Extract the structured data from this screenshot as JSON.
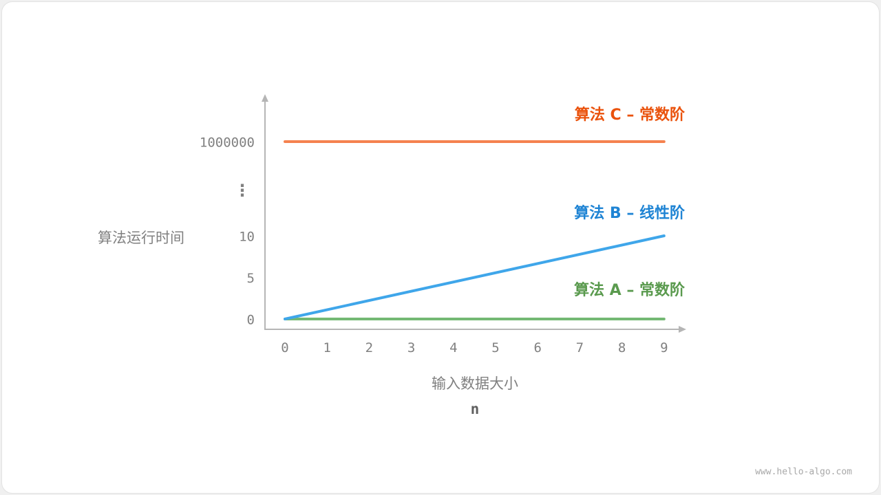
{
  "chart_data": {
    "type": "line",
    "xlabel": "输入数据大小",
    "xlabel_sub": "n",
    "ylabel": "算法运行时间",
    "x_ticks": [
      0,
      1,
      2,
      3,
      4,
      5,
      6,
      7,
      8,
      9
    ],
    "y_ticks": [
      "0",
      "5",
      "10",
      "1000000"
    ],
    "y_ellipsis": "⋮",
    "y_axis_broken": true,
    "xlim": [
      0,
      9
    ],
    "grid": false,
    "series": [
      {
        "name": "算法 A – 常数阶",
        "x": [
          0,
          9
        ],
        "y": [
          0,
          0
        ],
        "color": "#74b874",
        "label_color": "#5a9a4e"
      },
      {
        "name": "算法 B – 线性阶",
        "x": [
          0,
          9
        ],
        "y": [
          0,
          10
        ],
        "color": "#3fa6ea",
        "label_color": "#1f84d4"
      },
      {
        "name": "算法 C – 常数阶",
        "x": [
          0,
          9
        ],
        "y": [
          1000000,
          1000000
        ],
        "color": "#f5824f",
        "label_color": "#ea520c"
      }
    ]
  },
  "watermark": "www.hello-algo.com"
}
